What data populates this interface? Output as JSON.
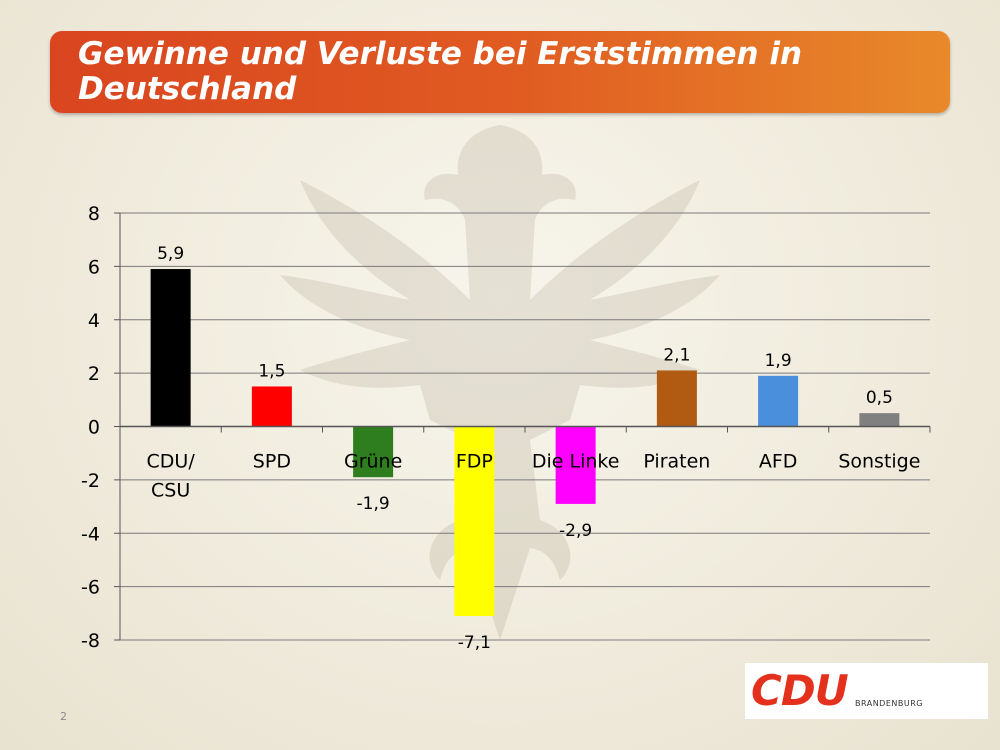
{
  "title": "Gewinne und Verluste bei Erststimmen in Deutschland",
  "page_number": "2",
  "logo": {
    "main": "CDU",
    "sub": "BRANDENBURG"
  },
  "colors": {
    "title_start": "#d9451f",
    "title_end": "#e8892a",
    "logo_red": "#e3311d"
  },
  "chart_data": {
    "type": "bar",
    "categories": [
      "CDU/ CSU",
      "SPD",
      "Grüne",
      "FDP",
      "Die Linke",
      "Piraten",
      "AFD",
      "Sonstige"
    ],
    "values": [
      5.9,
      1.5,
      -1.9,
      -7.1,
      -2.9,
      2.1,
      1.9,
      0.5
    ],
    "value_labels": [
      "5,9",
      "1,5",
      "-1,9",
      "-7,1",
      "-2,9",
      "2,1",
      "1,9",
      "0,5"
    ],
    "colors": [
      "#000000",
      "#ff0000",
      "#2e7d1e",
      "#ffff00",
      "#ff00ff",
      "#b05a12",
      "#4a8fdc",
      "#808080"
    ],
    "yticks": [
      8,
      6,
      4,
      2,
      0,
      -2,
      -4,
      -6,
      -8
    ],
    "ylim": [
      -8,
      8
    ],
    "grid": true,
    "legend": "none"
  }
}
